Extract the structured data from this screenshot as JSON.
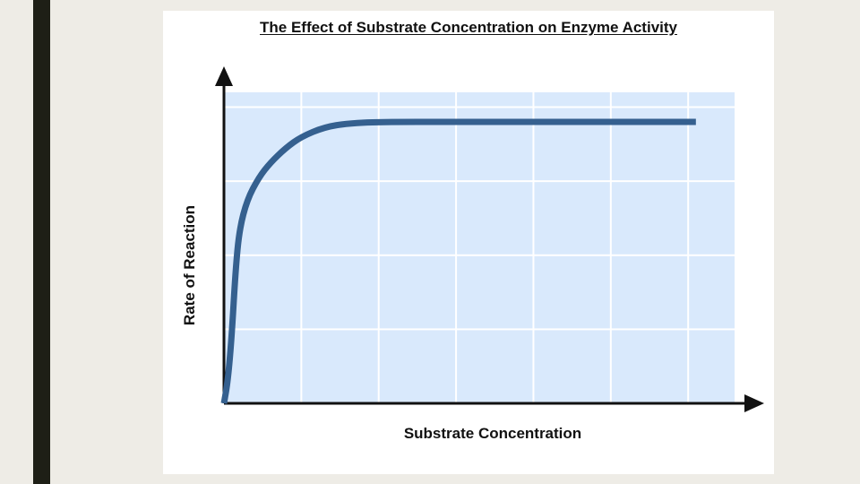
{
  "chart_data": {
    "type": "line",
    "title": "The Effect of Substrate Concentration on Enzyme Activity",
    "xlabel": "Substrate Concentration",
    "ylabel": "Rate of Reaction",
    "xlim": [
      0,
      6.6
    ],
    "ylim": [
      0,
      4.2
    ],
    "grid": true,
    "series": [
      {
        "values": [
          [
            0,
            0
          ],
          [
            0.05,
            0.3
          ],
          [
            0.1,
            0.9
          ],
          [
            0.15,
            1.8
          ],
          [
            0.2,
            2.35
          ],
          [
            0.3,
            2.75
          ],
          [
            0.45,
            3.05
          ],
          [
            0.6,
            3.25
          ],
          [
            0.8,
            3.45
          ],
          [
            1.0,
            3.6
          ],
          [
            1.3,
            3.73
          ],
          [
            1.6,
            3.78
          ],
          [
            2.0,
            3.8
          ],
          [
            3.0,
            3.8
          ],
          [
            4.0,
            3.8
          ],
          [
            5.0,
            3.8
          ],
          [
            6.1,
            3.8
          ]
        ]
      }
    ],
    "colors": {
      "plot_background": "#d9e9fc",
      "gridline": "#ffffff",
      "curve": "#35608f",
      "axis": "#111111"
    }
  }
}
